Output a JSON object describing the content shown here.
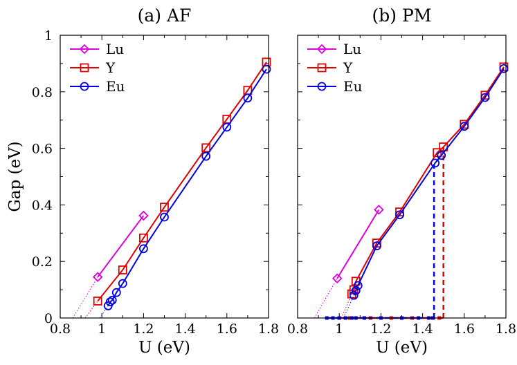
{
  "chart_data": [
    {
      "type": "line",
      "title": "(a) AF",
      "xlabel": "U (eV)",
      "ylabel": "Gap (eV)",
      "xlim": [
        0.8,
        1.8
      ],
      "ylim": [
        0,
        1
      ],
      "xticks": [
        "0.8",
        "1",
        "1.2",
        "1.4",
        "1.6",
        "1.8"
      ],
      "yticks": [
        "0",
        "0.2",
        "0.4",
        "0.6",
        "0.8",
        "1"
      ],
      "legend_position": "top-left",
      "series": [
        {
          "name": "Lu",
          "color": "#e000e0",
          "marker": "diamond",
          "points": [
            [
              0.98,
              0.145
            ],
            [
              1.2,
              0.362
            ]
          ],
          "extrapolation": [
            [
              0.86,
              0.0
            ],
            [
              0.98,
              0.145
            ]
          ]
        },
        {
          "name": "Y",
          "color": "#e00000",
          "marker": "square",
          "points": [
            [
              0.98,
              0.06
            ],
            [
              1.1,
              0.17
            ],
            [
              1.2,
              0.283
            ],
            [
              1.3,
              0.392
            ],
            [
              1.5,
              0.602
            ],
            [
              1.6,
              0.703
            ],
            [
              1.7,
              0.805
            ],
            [
              1.79,
              0.905
            ]
          ],
          "extrapolation": [
            [
              0.92,
              0.0
            ],
            [
              0.98,
              0.06
            ]
          ]
        },
        {
          "name": "Eu",
          "color": "#0000e0",
          "marker": "circle",
          "points": [
            [
              1.03,
              0.043
            ],
            [
              1.04,
              0.057
            ],
            [
              1.05,
              0.063
            ],
            [
              1.07,
              0.09
            ],
            [
              1.1,
              0.122
            ],
            [
              1.2,
              0.245
            ],
            [
              1.3,
              0.357
            ],
            [
              1.5,
              0.572
            ],
            [
              1.6,
              0.675
            ],
            [
              1.7,
              0.778
            ],
            [
              1.79,
              0.88
            ]
          ],
          "extrapolation": [
            [
              0.99,
              0.0
            ],
            [
              1.03,
              0.043
            ]
          ]
        }
      ]
    },
    {
      "type": "line",
      "title": "(b) PM",
      "xlabel": "U (eV)",
      "ylabel": "",
      "xlim": [
        0.8,
        1.8
      ],
      "ylim": [
        0,
        1
      ],
      "xticks": [
        "0.8",
        "1",
        "1.2",
        "1.4",
        "1.6",
        "1.8"
      ],
      "yticks": [],
      "legend_position": "top-left",
      "series": [
        {
          "name": "Lu",
          "color": "#e000e0",
          "marker": "diamond",
          "points": [
            [
              0.99,
              0.14
            ],
            [
              1.19,
              0.383
            ]
          ],
          "extrapolation": [
            [
              0.88,
              0.0
            ],
            [
              0.99,
              0.14
            ]
          ]
        },
        {
          "name": "Y",
          "color": "#e00000",
          "marker": "square",
          "points": [
            [
              1.06,
              0.085
            ],
            [
              1.07,
              0.1
            ],
            [
              1.08,
              0.13
            ],
            [
              1.18,
              0.265
            ],
            [
              1.29,
              0.375
            ],
            [
              1.47,
              0.585
            ],
            [
              1.5,
              0.605
            ],
            [
              1.6,
              0.685
            ],
            [
              1.7,
              0.788
            ],
            [
              1.79,
              0.888
            ]
          ],
          "extrapolation": [
            [
              1.01,
              0.0
            ],
            [
              1.06,
              0.085
            ]
          ],
          "zero_points": [
            1.0,
            1.05,
            1.15,
            1.25,
            1.35,
            1.45,
            1.48
          ],
          "transition": 1.5
        },
        {
          "name": "Eu",
          "color": "#0000e0",
          "marker": "circle",
          "points": [
            [
              1.07,
              0.08
            ],
            [
              1.08,
              0.097
            ],
            [
              1.09,
              0.115
            ],
            [
              1.18,
              0.255
            ],
            [
              1.29,
              0.365
            ],
            [
              1.46,
              0.548
            ],
            [
              1.49,
              0.575
            ],
            [
              1.6,
              0.678
            ],
            [
              1.7,
              0.78
            ],
            [
              1.79,
              0.882
            ]
          ],
          "extrapolation": [
            [
              1.02,
              0.0
            ],
            [
              1.07,
              0.08
            ]
          ],
          "zero_points": [
            0.94,
            0.97,
            1.0,
            1.03,
            1.06,
            1.08,
            1.12,
            1.2,
            1.3,
            1.38,
            1.43,
            1.45
          ],
          "transition": 1.455
        }
      ]
    }
  ]
}
